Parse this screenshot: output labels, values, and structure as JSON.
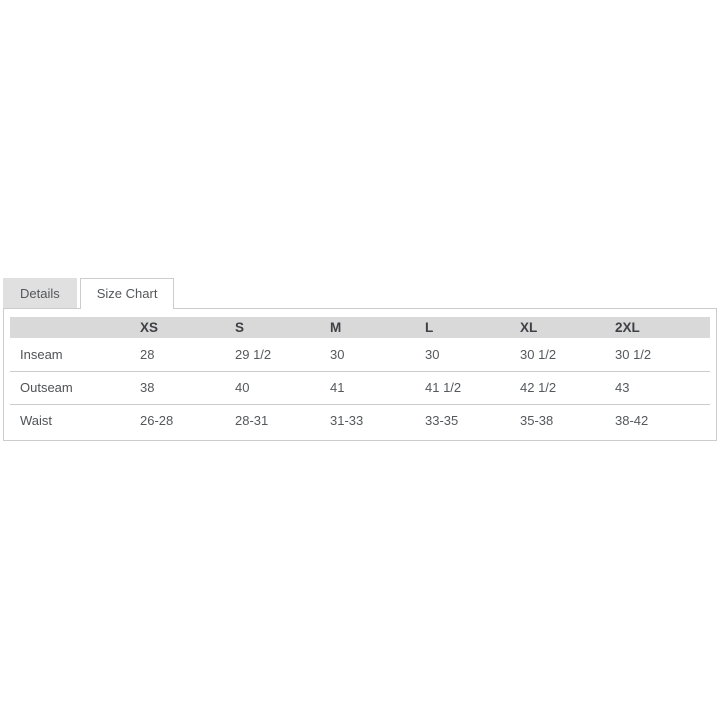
{
  "tabs": {
    "details": {
      "label": "Details",
      "active": false
    },
    "size_chart": {
      "label": "Size Chart",
      "active": true
    }
  },
  "chart_data": {
    "type": "table",
    "title": "Size Chart",
    "columns": [
      "XS",
      "S",
      "M",
      "L",
      "XL",
      "2XL"
    ],
    "rows": [
      {
        "label": "Inseam",
        "values": [
          "28",
          "29 1/2",
          "30",
          "30",
          "30 1/2",
          "30 1/2"
        ]
      },
      {
        "label": "Outseam",
        "values": [
          "38",
          "40",
          "41",
          "41 1/2",
          "42 1/2",
          "43"
        ]
      },
      {
        "label": "Waist",
        "values": [
          "26-28",
          "28-31",
          "31-33",
          "33-35",
          "35-38",
          "38-42"
        ]
      }
    ]
  },
  "colors": {
    "tab_inactive_bg": "#e0e0e0",
    "tab_active_bg": "#ffffff",
    "border": "#cccccc",
    "table_header_bg": "#d9d9d9",
    "text": "#4d4f53"
  }
}
